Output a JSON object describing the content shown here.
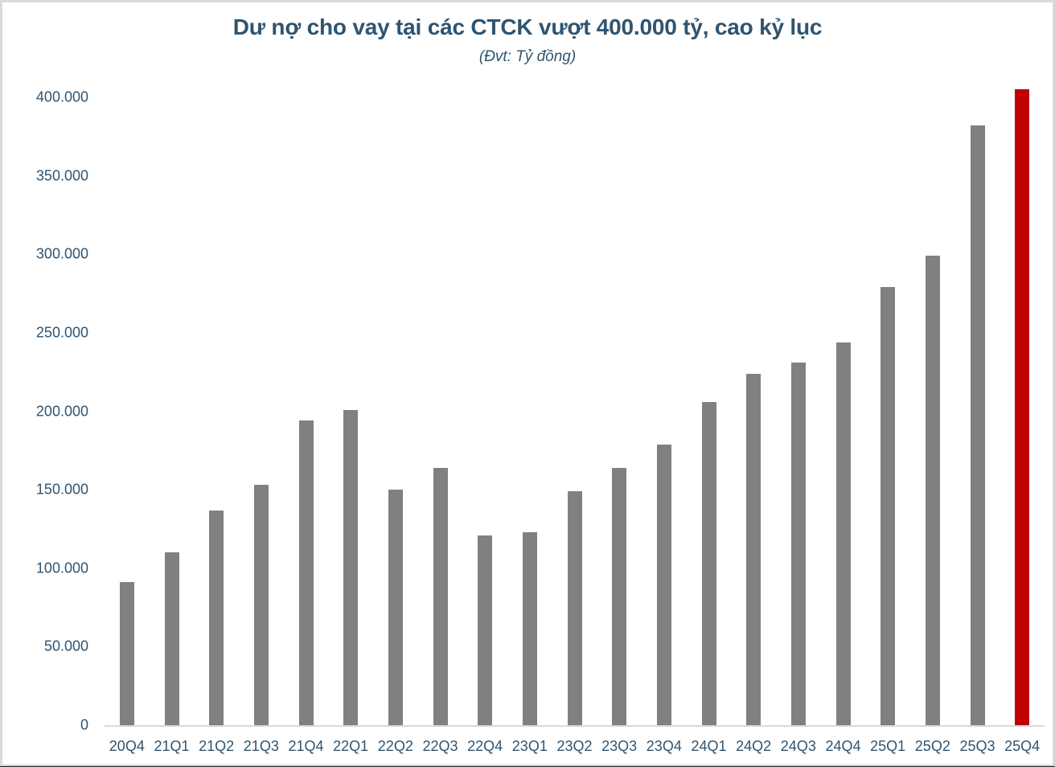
{
  "chart_data": {
    "type": "bar",
    "title": "Dư nợ cho vay tại các CTCK vượt 400.000 tỷ, cao kỷ lục",
    "subtitle": "(Đvt: Tỷ đồng)",
    "xlabel": "",
    "ylabel": "",
    "ylim": [
      0,
      400000
    ],
    "yticks": [
      "0",
      "50.000",
      "100.000",
      "150.000",
      "200.000",
      "250.000",
      "300.000",
      "350.000",
      "400.000"
    ],
    "ytick_values": [
      0,
      50000,
      100000,
      150000,
      200000,
      250000,
      300000,
      350000,
      400000
    ],
    "grid": false,
    "legend": null,
    "categories": [
      "20Q4",
      "21Q1",
      "21Q2",
      "21Q3",
      "21Q4",
      "22Q1",
      "22Q2",
      "22Q3",
      "22Q4",
      "23Q1",
      "23Q2",
      "23Q3",
      "23Q4",
      "24Q1",
      "24Q2",
      "24Q3",
      "24Q4",
      "25Q1",
      "25Q2",
      "25Q3",
      "25Q4"
    ],
    "values": [
      91000,
      110000,
      137000,
      153000,
      194000,
      201000,
      150000,
      164000,
      121000,
      123000,
      149000,
      164000,
      179000,
      206000,
      224000,
      231000,
      244000,
      279000,
      299000,
      382000,
      405000
    ],
    "colors": {
      "default_bar": "#808080",
      "highlight_bar": "#C00000",
      "text": "#2F5470",
      "axis": "#D9D9D9"
    },
    "highlight_index": 20
  }
}
